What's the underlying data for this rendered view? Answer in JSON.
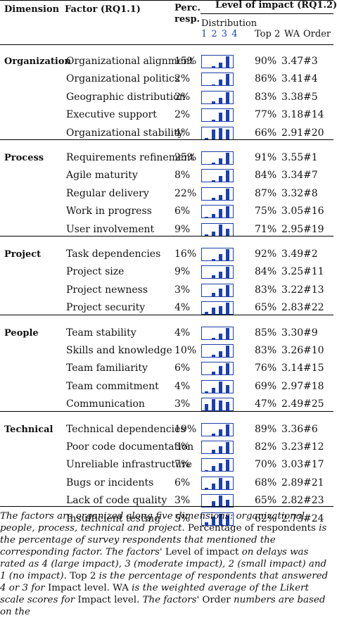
{
  "header": {
    "dimension": "Dimension",
    "factor": "Factor (RQ1.1)",
    "perc_line1": "Perc.",
    "perc_line2": "resp.",
    "level": "Level of impact (RQ1.2)",
    "distribution": "Distribution",
    "dist_numbers": "1 2 3 4",
    "top2": "Top 2",
    "wa": "WA",
    "order": "Order"
  },
  "groups": [
    {
      "name": "Organization",
      "rows": [
        {
          "factor": "Organizational alignment",
          "perc": "15%",
          "dist": [
            0,
            0.1,
            0.45,
            1
          ],
          "top2": "90%",
          "wa": "3.47",
          "order": "#3"
        },
        {
          "factor": "Organizational politics",
          "perc": "2%",
          "dist": [
            0,
            0.1,
            0.55,
            1
          ],
          "top2": "86%",
          "wa": "3.41",
          "order": "#4"
        },
        {
          "factor": "Geographic distribution",
          "perc": "2%",
          "dist": [
            0,
            0.2,
            0.5,
            1
          ],
          "top2": "83%",
          "wa": "3.38",
          "order": "#5"
        },
        {
          "factor": "Executive support",
          "perc": "2%",
          "dist": [
            0,
            0.15,
            0.75,
            1
          ],
          "top2": "77%",
          "wa": "3.18",
          "order": "#14"
        },
        {
          "factor": "Organizational stability",
          "perc": "4%",
          "dist": [
            0.1,
            0.85,
            1,
            0.85
          ],
          "top2": "66%",
          "wa": "2.91",
          "order": "#20"
        }
      ]
    },
    {
      "name": "Process",
      "rows": [
        {
          "factor": "Requirements refinement",
          "perc": "25%",
          "dist": [
            0,
            0.1,
            0.5,
            1
          ],
          "top2": "91%",
          "wa": "3.55",
          "order": "#1"
        },
        {
          "factor": "Agile maturity",
          "perc": "8%",
          "dist": [
            0,
            0.15,
            0.5,
            1
          ],
          "top2": "84%",
          "wa": "3.34",
          "order": "#7"
        },
        {
          "factor": "Regular delivery",
          "perc": "22%",
          "dist": [
            0,
            0.2,
            0.45,
            1
          ],
          "top2": "87%",
          "wa": "3.32",
          "order": "#8"
        },
        {
          "factor": "Work in progress",
          "perc": "6%",
          "dist": [
            0.05,
            0.3,
            0.75,
            1
          ],
          "top2": "75%",
          "wa": "3.05",
          "order": "#16"
        },
        {
          "factor": "User involvement",
          "perc": "9%",
          "dist": [
            0.05,
            0.35,
            1,
            0.6
          ],
          "top2": "71%",
          "wa": "2.95",
          "order": "#19"
        }
      ]
    },
    {
      "name": "Project",
      "rows": [
        {
          "factor": "Task dependencies",
          "perc": "16%",
          "dist": [
            0,
            0.1,
            0.55,
            1
          ],
          "top2": "92%",
          "wa": "3.49",
          "order": "#2"
        },
        {
          "factor": "Project size",
          "perc": "9%",
          "dist": [
            0,
            0.3,
            0.6,
            1
          ],
          "top2": "84%",
          "wa": "3.25",
          "order": "#11"
        },
        {
          "factor": "Project newness",
          "perc": "3%",
          "dist": [
            0,
            0.3,
            0.7,
            1
          ],
          "top2": "83%",
          "wa": "3.22",
          "order": "#13"
        },
        {
          "factor": "Project security",
          "perc": "4%",
          "dist": [
            0.2,
            0.55,
            0.7,
            1
          ],
          "top2": "65%",
          "wa": "2.83",
          "order": "#22"
        }
      ]
    },
    {
      "name": "People",
      "rows": [
        {
          "factor": "Team stability",
          "perc": "4%",
          "dist": [
            0,
            0.1,
            0.5,
            1
          ],
          "top2": "85%",
          "wa": "3.30",
          "order": "#9"
        },
        {
          "factor": "Skills and knowledge",
          "perc": "10%",
          "dist": [
            0,
            0.2,
            0.5,
            1
          ],
          "top2": "83%",
          "wa": "3.26",
          "order": "#10"
        },
        {
          "factor": "Team familiarity",
          "perc": "6%",
          "dist": [
            0,
            0.3,
            0.8,
            1
          ],
          "top2": "76%",
          "wa": "3.14",
          "order": "#15"
        },
        {
          "factor": "Team commitment",
          "perc": "4%",
          "dist": [
            0.05,
            0.45,
            1,
            0.7
          ],
          "top2": "69%",
          "wa": "2.97",
          "order": "#18"
        },
        {
          "factor": "Communication",
          "perc": "3%",
          "dist": [
            0.55,
            1,
            0.9,
            0.75
          ],
          "top2": "47%",
          "wa": "2.49",
          "order": "#25"
        }
      ]
    },
    {
      "name": "Technical",
      "rows": [
        {
          "factor": "Technical dependencies",
          "perc": "19%",
          "dist": [
            0,
            0.15,
            0.55,
            1
          ],
          "top2": "89%",
          "wa": "3.36",
          "order": "#6"
        },
        {
          "factor": "Poor code documentation",
          "perc": "3%",
          "dist": [
            0,
            0.3,
            0.65,
            1
          ],
          "top2": "82%",
          "wa": "3.23",
          "order": "#12"
        },
        {
          "factor": "Unreliable infrastructure",
          "perc": "7%",
          "dist": [
            0.05,
            0.45,
            0.7,
            1
          ],
          "top2": "70%",
          "wa": "3.03",
          "order": "#17"
        },
        {
          "factor": "Bugs or incidents",
          "perc": "6%",
          "dist": [
            0.1,
            0.5,
            1,
            0.75
          ],
          "top2": "68%",
          "wa": "2.89",
          "order": "#21"
        },
        {
          "factor": "Lack of code quality",
          "perc": "3%",
          "dist": [
            0.1,
            0.5,
            1,
            0.65
          ],
          "top2": "65%",
          "wa": "2.82",
          "order": "#23"
        },
        {
          "factor": "Insufficient testing",
          "perc": "5%",
          "dist": [
            0.25,
            0.7,
            1,
            0.85
          ],
          "top2": "62%",
          "wa": "2.73",
          "order": "#24"
        }
      ]
    }
  ],
  "caption": {
    "p1": "The factors are organized along five dimensions: organizational, people, process, technical and project. ",
    "p2": "Percentage of respondents",
    "p3": " is the percentage of survey respondents that mentioned the corresponding factor. The factors' ",
    "p4": "Level of impact",
    "p5": " on delays was rated as 4 (large impact), 3 (moderate impact), 2 (small impact) and 1 (no impact). ",
    "p6": "Top 2",
    "p7": " is the percentage of respondents that answered 4 or 3 for ",
    "p8": "Impact level",
    "p9": ". ",
    "p10": "WA",
    "p11": " is the weighted average of the Likert scale scores for ",
    "p12": "Impact level",
    "p13": ". The factors' ",
    "p14": "Order",
    "p15": " numbers are based on the"
  },
  "colors": {
    "bar": "#1c3fb3",
    "frame": "#1f3fa8",
    "dist_numbers": "#1c3fb3"
  }
}
